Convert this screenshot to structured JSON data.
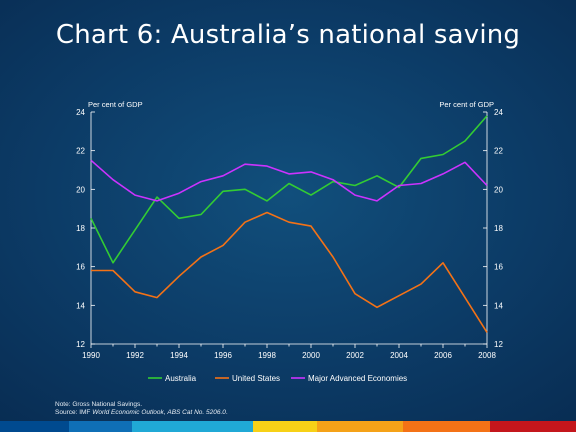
{
  "slide": {
    "title": "Chart 6: Australia’s national saving"
  },
  "chart_data": {
    "type": "line",
    "title": "",
    "ylabel_left": "Per cent of GDP",
    "ylabel_right": "Per cent of GDP",
    "xlabel": "",
    "x": [
      1990,
      1991,
      1992,
      1993,
      1994,
      1995,
      1996,
      1997,
      1998,
      1999,
      2000,
      2001,
      2002,
      2003,
      2004,
      2005,
      2006,
      2007,
      2008
    ],
    "xticks": [
      1990,
      1992,
      1994,
      1996,
      1998,
      2000,
      2002,
      2004,
      2006,
      2008
    ],
    "ylim": [
      12,
      24
    ],
    "yticks": [
      12,
      14,
      16,
      18,
      20,
      22,
      24
    ],
    "grid": false,
    "legend_position": "bottom",
    "series": [
      {
        "name": "Australia",
        "color": "#33cc33",
        "values": [
          18.5,
          16.2,
          17.9,
          19.6,
          18.5,
          18.7,
          19.9,
          20.0,
          19.4,
          20.3,
          19.7,
          20.4,
          20.2,
          20.7,
          20.1,
          21.6,
          21.8,
          22.5,
          23.8
        ]
      },
      {
        "name": "United States",
        "color": "#f47216",
        "values": [
          15.8,
          15.8,
          14.7,
          14.4,
          15.5,
          16.5,
          17.1,
          18.3,
          18.8,
          18.3,
          18.1,
          16.5,
          14.6,
          13.9,
          14.5,
          15.1,
          16.2,
          14.4,
          12.6
        ]
      },
      {
        "name": "Major Advanced Economies",
        "color": "#cc33ff",
        "values": [
          21.5,
          20.5,
          19.7,
          19.4,
          19.8,
          20.4,
          20.7,
          21.3,
          21.2,
          20.8,
          20.9,
          20.5,
          19.7,
          19.4,
          20.2,
          20.3,
          20.8,
          21.4,
          20.2
        ]
      }
    ]
  },
  "notes": {
    "note_line": "Note:   Gross National Savings.",
    "source_prefix": "Source: IMF ",
    "source_em1": "World Economic Outlook",
    "source_mid": ", ",
    "source_em2": "ABS Cat No. 5206.0",
    "source_suffix": "."
  },
  "colors": {
    "axis": "#ffffff",
    "background_center": "#114f7c",
    "background_edge": "#082c52",
    "strip": [
      "#004a8f",
      "#0f6fb6",
      "#20a9d6",
      "#f7d117",
      "#f5a218",
      "#f47216",
      "#c4161c"
    ]
  }
}
